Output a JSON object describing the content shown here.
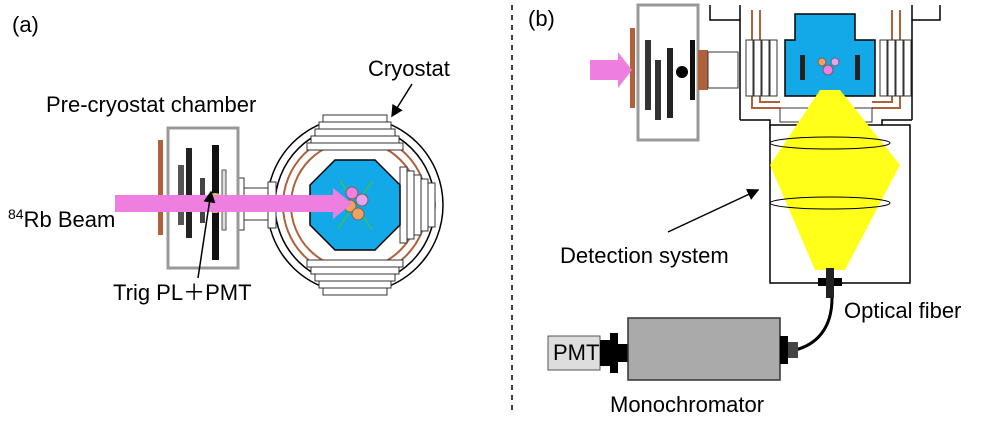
{
  "panel_a": {
    "label": "(a)",
    "cryostat": "Cryostat",
    "chamber": "Pre-cryostat chamber",
    "beam": {
      "isotope": "84",
      "text": "Rb Beam"
    },
    "trigger": "Trig PL＋PMT"
  },
  "panel_b": {
    "label": "(b)",
    "detection": "Detection system",
    "fiber": "Optical fiber",
    "pmt": "PMT",
    "monochromator": "Monochromator"
  }
}
